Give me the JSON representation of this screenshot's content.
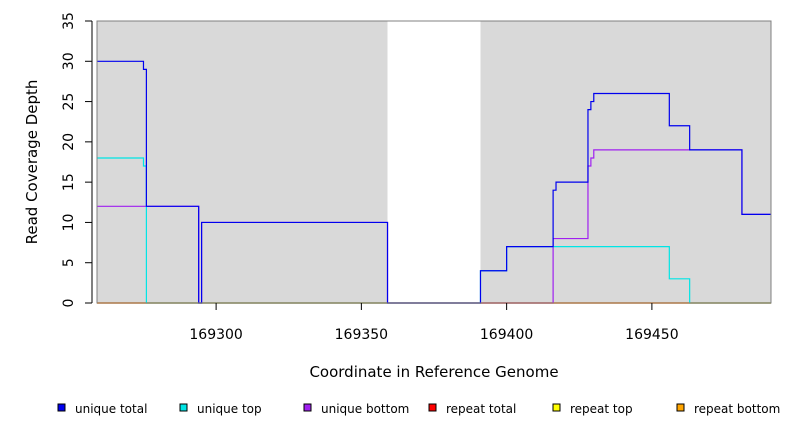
{
  "chart_data": {
    "type": "line",
    "step": true,
    "xlabel": "Coordinate in Reference Genome",
    "ylabel": "Read Coverage Depth",
    "xlim": [
      169259,
      169491
    ],
    "ylim": [
      0,
      35
    ],
    "x_ticks": [
      169300,
      169350,
      169400,
      169450
    ],
    "y_ticks": [
      0,
      5,
      10,
      15,
      20,
      25,
      30,
      35
    ],
    "shaded_regions": [
      [
        169259,
        169359
      ],
      [
        169391,
        169491
      ]
    ],
    "shade_color": "#d9d9d9",
    "series": [
      {
        "name": "unique total",
        "color": "#0000ee",
        "points": [
          [
            169259,
            30
          ],
          [
            169275,
            30
          ],
          [
            169275,
            29
          ],
          [
            169276,
            29
          ],
          [
            169276,
            12
          ],
          [
            169294,
            12
          ],
          [
            169294,
            0
          ],
          [
            169295,
            0
          ],
          [
            169295,
            10
          ],
          [
            169359,
            10
          ],
          [
            169359,
            0
          ],
          [
            169391,
            0
          ],
          [
            169391,
            4
          ],
          [
            169400,
            4
          ],
          [
            169400,
            7
          ],
          [
            169416,
            7
          ],
          [
            169416,
            14
          ],
          [
            169417,
            14
          ],
          [
            169417,
            15
          ],
          [
            169428,
            15
          ],
          [
            169428,
            24
          ],
          [
            169429,
            24
          ],
          [
            169429,
            25
          ],
          [
            169430,
            25
          ],
          [
            169430,
            26
          ],
          [
            169456,
            26
          ],
          [
            169456,
            22
          ],
          [
            169463,
            22
          ],
          [
            169463,
            19
          ],
          [
            169481,
            19
          ],
          [
            169481,
            11
          ],
          [
            169491,
            11
          ]
        ]
      },
      {
        "name": "unique top",
        "color": "#00e5e5",
        "points": [
          [
            169259,
            18
          ],
          [
            169275,
            18
          ],
          [
            169275,
            17
          ],
          [
            169276,
            17
          ],
          [
            169276,
            0
          ],
          [
            169391,
            0
          ],
          [
            169391,
            4
          ],
          [
            169400,
            4
          ],
          [
            169400,
            7
          ],
          [
            169456,
            7
          ],
          [
            169456,
            3
          ],
          [
            169463,
            3
          ],
          [
            169463,
            0
          ],
          [
            169491,
            0
          ]
        ]
      },
      {
        "name": "unique bottom",
        "color": "#a020f0",
        "points": [
          [
            169259,
            12
          ],
          [
            169276,
            12
          ],
          [
            169294,
            12
          ],
          [
            169294,
            0
          ],
          [
            169295,
            0
          ],
          [
            169295,
            10
          ],
          [
            169359,
            10
          ],
          [
            169359,
            0
          ],
          [
            169416,
            0
          ],
          [
            169416,
            8
          ],
          [
            169428,
            8
          ],
          [
            169428,
            17
          ],
          [
            169429,
            17
          ],
          [
            169429,
            18
          ],
          [
            169430,
            18
          ],
          [
            169430,
            19
          ],
          [
            169481,
            19
          ],
          [
            169481,
            11
          ],
          [
            169491,
            11
          ]
        ]
      },
      {
        "name": "repeat total",
        "color": "#ff0000",
        "points": [
          [
            169259,
            0
          ],
          [
            169491,
            0
          ]
        ]
      },
      {
        "name": "repeat top",
        "color": "#ffff00",
        "points": [
          [
            169259,
            0
          ],
          [
            169491,
            0
          ]
        ]
      },
      {
        "name": "repeat bottom",
        "color": "#ffa500",
        "points": [
          [
            169259,
            0
          ],
          [
            169491,
            0
          ]
        ]
      }
    ]
  }
}
